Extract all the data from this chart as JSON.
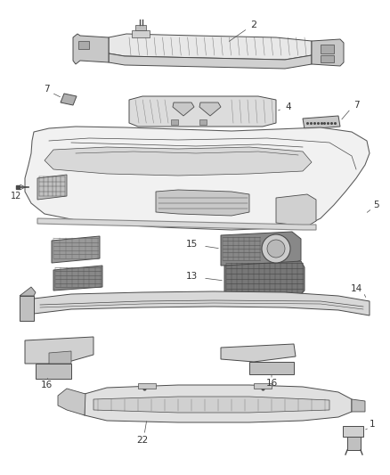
{
  "bg_color": "#ffffff",
  "line_color": "#4a4a4a",
  "label_color": "#333333",
  "lw": 0.7,
  "figsize": [
    4.38,
    5.33
  ],
  "dpi": 100
}
